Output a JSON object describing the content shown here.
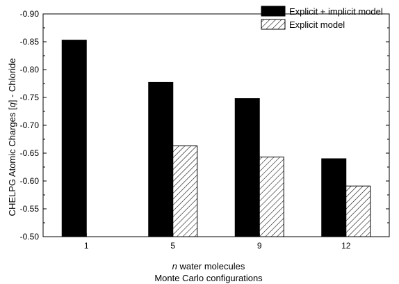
{
  "chart_data": {
    "type": "bar",
    "categories": [
      "1",
      "5",
      "9",
      "12"
    ],
    "series": [
      {
        "name": "Explicit + implicit model",
        "values": [
          -0.853,
          -0.777,
          -0.748,
          -0.64
        ],
        "style": "solid",
        "color": "#000000"
      },
      {
        "name": "Explicit model",
        "values": [
          null,
          -0.663,
          -0.643,
          -0.591
        ],
        "style": "hatched",
        "color": "#000000"
      }
    ],
    "ylim": [
      -0.5,
      -0.9
    ],
    "yticks": [
      "-0.90",
      "-0.85",
      "-0.80",
      "-0.75",
      "-0.70",
      "-0.65",
      "-0.60",
      "-0.55",
      "-0.50"
    ],
    "ytick_values": [
      -0.9,
      -0.85,
      -0.8,
      -0.75,
      -0.7,
      -0.65,
      -0.6,
      -0.55,
      -0.5
    ],
    "ylabel": "CHELPG Atomic Charges [q] - Chloride",
    "xlabel_lines": [
      "n water molecules",
      "Monte Carlo configurations"
    ],
    "legend": "top-right",
    "grid": false
  }
}
